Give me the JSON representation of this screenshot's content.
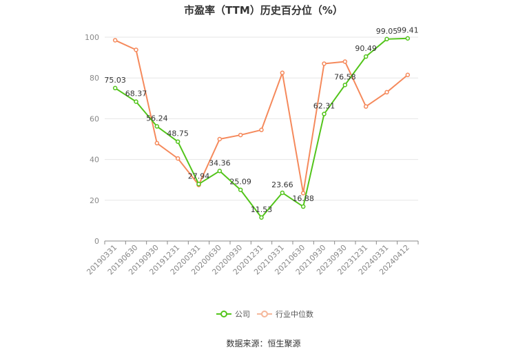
{
  "chart_data": {
    "type": "line",
    "title": "市盈率（TTM）历史百分位（%）",
    "xlabel": "",
    "ylabel": "",
    "ylim": [
      0,
      100
    ],
    "yticks": [
      0,
      20,
      40,
      60,
      80,
      100
    ],
    "grid": true,
    "legend_position": "bottom",
    "categories": [
      "20190331",
      "20190630",
      "20190930",
      "20191231",
      "20200331",
      "20200630",
      "20200930",
      "20201231",
      "20210331",
      "20210630",
      "20210930",
      "20230930",
      "20231231",
      "20240331",
      "20240412"
    ],
    "series": [
      {
        "name": "公司",
        "color": "#52c41a",
        "show_labels": true,
        "values": [
          75.03,
          68.37,
          56.24,
          48.75,
          27.94,
          34.36,
          25.09,
          11.53,
          23.66,
          16.88,
          62.31,
          76.58,
          90.49,
          99.05,
          99.41
        ]
      },
      {
        "name": "行业中位数",
        "color": "#f5895b",
        "show_labels": false,
        "values": [
          98.5,
          93.8,
          48.0,
          40.5,
          27.5,
          50.0,
          52.0,
          54.5,
          82.5,
          23.5,
          87.0,
          88.0,
          66.0,
          73.0,
          81.5
        ]
      }
    ]
  },
  "source": "数据来源：恒生聚源"
}
